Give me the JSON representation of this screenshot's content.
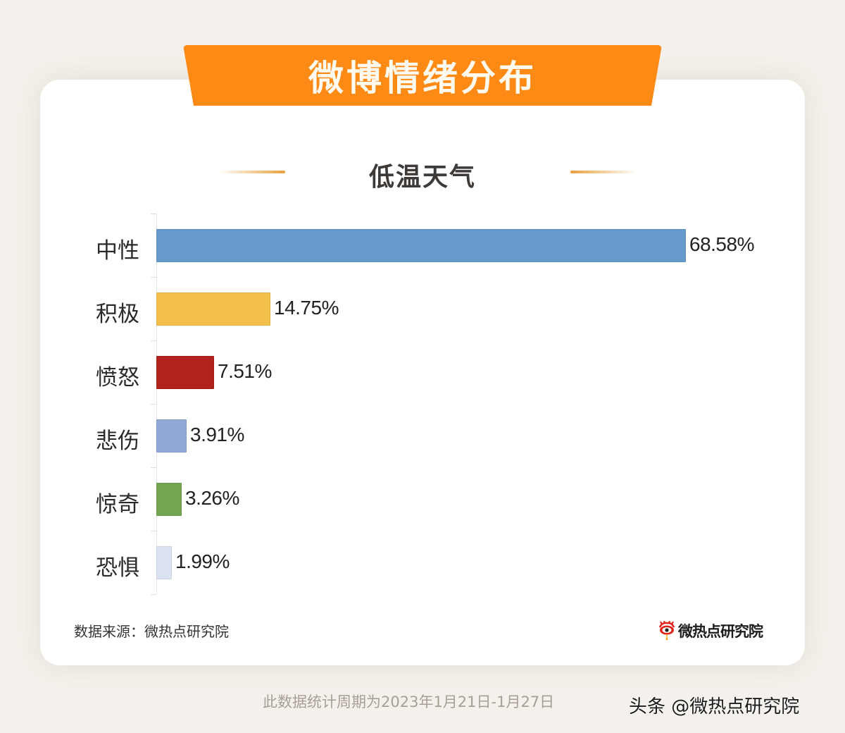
{
  "banner": {
    "title": "微博情绪分布"
  },
  "subtitle": "低温天气",
  "chart_data": {
    "type": "bar",
    "orientation": "horizontal",
    "title": "微博情绪分布",
    "subtitle": "低温天气",
    "categories": [
      "中性",
      "积极",
      "愤怒",
      "悲伤",
      "惊奇",
      "恐惧"
    ],
    "values": [
      68.58,
      14.75,
      7.51,
      3.91,
      3.26,
      1.99
    ],
    "value_labels": [
      "68.58%",
      "14.75%",
      "7.51%",
      "3.91%",
      "3.26%",
      "1.99%"
    ],
    "colors": [
      "#6699cc",
      "#f2c04a",
      "#b0221b",
      "#8fa8d6",
      "#73a652",
      "#dce3f0"
    ],
    "unit": "%",
    "xlabel": "",
    "ylabel": "",
    "xlim": [
      0,
      68.58
    ],
    "grid": false,
    "legend": "none"
  },
  "footer": {
    "source": "数据来源：微热点研究院",
    "logo_text": "微热点研究院",
    "period": "此数据统计周期为2023年1月21日-1月27日",
    "watermark": "头条 @微热点研究院"
  }
}
